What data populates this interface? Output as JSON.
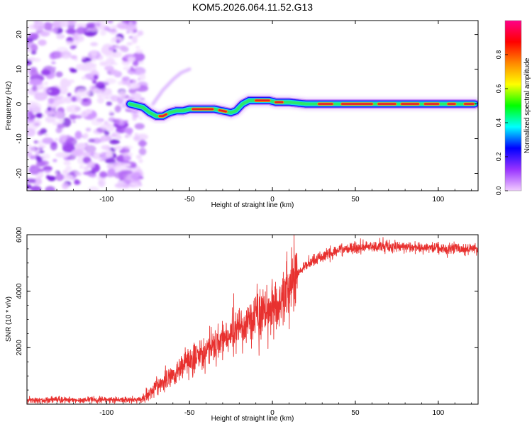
{
  "title": "KOM5.2026.064.11.52.G13",
  "chart_data": [
    {
      "type": "heatmap",
      "name": "spectrogram",
      "xlabel": "Height of straight line (km)",
      "ylabel": "Frequency (Hz)",
      "xlim": [
        -148,
        124
      ],
      "ylim": [
        -25,
        24
      ],
      "xticks": [
        -100,
        -50,
        0,
        50,
        100
      ],
      "yticks": [
        -20,
        -10,
        0,
        10,
        20
      ],
      "noise_region_x": [
        -148,
        -82
      ],
      "ridge": {
        "x": [
          -86,
          -82,
          -78,
          -74,
          -70,
          -66,
          -62,
          -58,
          -54,
          -50,
          -45,
          -40,
          -35,
          -30,
          -25,
          -22,
          -18,
          -14,
          -10,
          -6,
          -2,
          2,
          10,
          20,
          40,
          60,
          80,
          100,
          122
        ],
        "frequency": [
          0,
          -0.5,
          -1.0,
          -2.5,
          -3.5,
          -3.5,
          -2.5,
          -2.0,
          -2.0,
          -1.5,
          -1.5,
          -1.5,
          -1.5,
          -2.0,
          -2.5,
          -2.0,
          0,
          1.0,
          1.0,
          1.0,
          1.0,
          0.5,
          0.5,
          0,
          0,
          0,
          0,
          0,
          0
        ]
      },
      "branch": {
        "x": [
          -72,
          -66,
          -60,
          -55,
          -50
        ],
        "frequency": [
          0,
          4,
          7,
          9,
          10
        ]
      },
      "colorbar": {
        "label": "Normalized spectral amplitude",
        "range": [
          0,
          1
        ],
        "ticks": [
          "0.0",
          "0.2",
          "0.4",
          "0.6",
          "0.8"
        ],
        "colors": [
          "#f2ccff",
          "#9933ff",
          "#0000ff",
          "#00ffff",
          "#00ff00",
          "#ffff00",
          "#ff8800",
          "#ff0000",
          "#ff0088"
        ]
      },
      "accent_color": "#7a1fe0"
    },
    {
      "type": "line",
      "name": "snr",
      "xlabel": "Height of straight line (km)",
      "ylabel": "SNR (10 * v/v)",
      "xlim": [
        -148,
        124
      ],
      "ylim": [
        0,
        6000
      ],
      "xticks": [
        -100,
        -50,
        0,
        50,
        100
      ],
      "yticks": [
        2000,
        4000,
        6000
      ],
      "color": "#e8312f",
      "trend": {
        "x": [
          -148,
          -80,
          -75,
          -70,
          -60,
          -50,
          -40,
          -30,
          -20,
          -10,
          -5,
          0,
          5,
          10,
          20,
          30,
          40,
          50,
          60,
          70,
          80,
          100,
          124
        ],
        "snr": [
          150,
          150,
          300,
          650,
          1050,
          1500,
          1900,
          2300,
          2700,
          3100,
          3300,
          3450,
          3700,
          4200,
          4900,
          5250,
          5450,
          5550,
          5580,
          5600,
          5570,
          5520,
          5480
        ]
      }
    }
  ]
}
